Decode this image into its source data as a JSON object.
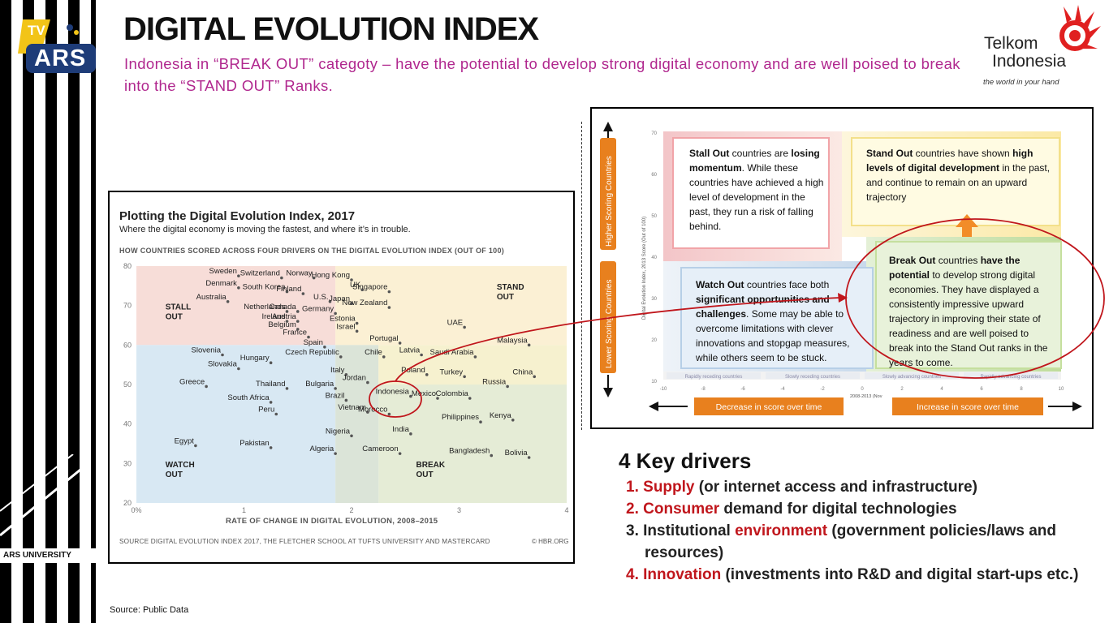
{
  "brand": {
    "tv_label": "TV",
    "ars_label": "ARS",
    "university": "ARS UNIVERSITY"
  },
  "header": {
    "title": "DIGITAL EVOLUTION INDEX",
    "subtitle": "Indonesia in “BREAK OUT” categoty – have the potential to develop strong digital economy and are well poised to  break into the “STAND OUT” Ranks."
  },
  "telkom": {
    "name_line1": "Telkom",
    "name_line2": "Indonesia",
    "tagline": "the world in your hand"
  },
  "chart_panel": {
    "title": "Plotting the Digital Evolution Index, 2017",
    "subtitle": "Where the digital economy is moving the fastest, and where it’s in trouble.",
    "header": "HOW COUNTRIES SCORED ACROSS FOUR DRIVERS ON THE DIGITAL EVOLUTION INDEX (OUT OF 100)",
    "source": "SOURCE  DIGITAL EVOLUTION INDEX 2017, THE FLETCHER SCHOOL AT TUFTS UNIVERSITY AND MASTERCARD",
    "hbr": "© HBR.ORG"
  },
  "chart_data": {
    "type": "scatter",
    "title": "Plotting the Digital Evolution Index, 2017",
    "xlabel": "RATE OF CHANGE IN DIGITAL EVOLUTION, 2008–2015",
    "ylabel": "",
    "xlim": [
      0,
      4
    ],
    "ylim": [
      20,
      80
    ],
    "x_ticks": [
      "0%",
      "1",
      "2",
      "3",
      "4"
    ],
    "y_ticks": [
      "20",
      "30",
      "40",
      "50",
      "60",
      "70",
      "80"
    ],
    "zones": [
      {
        "label": "STALL OUT",
        "color": "#f7ddd8"
      },
      {
        "label": "STAND OUT",
        "color": "#fbf0d4"
      },
      {
        "label": "WATCH OUT",
        "color": "#d8e8f3"
      },
      {
        "label": "BREAK OUT",
        "color": "#e5ecd6"
      }
    ],
    "points": [
      {
        "name": "Sweden",
        "x": 0.95,
        "y": 77.5
      },
      {
        "name": "Switzerland",
        "x": 1.35,
        "y": 77
      },
      {
        "name": "Norway",
        "x": 1.65,
        "y": 77
      },
      {
        "name": "Hong Kong",
        "x": 2.0,
        "y": 76.5
      },
      {
        "name": "Denmark",
        "x": 0.95,
        "y": 74.5
      },
      {
        "name": "UK",
        "x": 2.1,
        "y": 74
      },
      {
        "name": "South Korea",
        "x": 1.4,
        "y": 73.5
      },
      {
        "name": "Finland",
        "x": 1.55,
        "y": 73
      },
      {
        "name": "Singapore",
        "x": 2.35,
        "y": 73.5
      },
      {
        "name": "Australia",
        "x": 0.85,
        "y": 71
      },
      {
        "name": "U.S.",
        "x": 1.8,
        "y": 71
      },
      {
        "name": "Japan",
        "x": 2.0,
        "y": 70.5
      },
      {
        "name": "New Zealand",
        "x": 2.35,
        "y": 69.5
      },
      {
        "name": "Netherlands",
        "x": 1.4,
        "y": 68.5
      },
      {
        "name": "Canada",
        "x": 1.5,
        "y": 68.5
      },
      {
        "name": "Germany",
        "x": 1.85,
        "y": 68
      },
      {
        "name": "Ireland",
        "x": 1.4,
        "y": 66
      },
      {
        "name": "Austria",
        "x": 1.5,
        "y": 66
      },
      {
        "name": "Estonia",
        "x": 2.05,
        "y": 65.5
      },
      {
        "name": "Belgium",
        "x": 1.5,
        "y": 64
      },
      {
        "name": "Israel",
        "x": 2.05,
        "y": 63.5
      },
      {
        "name": "UAE",
        "x": 3.05,
        "y": 64.5
      },
      {
        "name": "France",
        "x": 1.6,
        "y": 62
      },
      {
        "name": "Portugal",
        "x": 2.45,
        "y": 60.5
      },
      {
        "name": "Malaysia",
        "x": 3.65,
        "y": 60
      },
      {
        "name": "Spain",
        "x": 1.75,
        "y": 59.5
      },
      {
        "name": "Slovenia",
        "x": 0.8,
        "y": 57.5
      },
      {
        "name": "Latvia",
        "x": 2.65,
        "y": 57.5
      },
      {
        "name": "Czech Republic",
        "x": 1.9,
        "y": 57
      },
      {
        "name": "Chile",
        "x": 2.3,
        "y": 57
      },
      {
        "name": "Saudi Arabia",
        "x": 3.15,
        "y": 57
      },
      {
        "name": "Hungary",
        "x": 1.25,
        "y": 55.5
      },
      {
        "name": "Slovakia",
        "x": 0.95,
        "y": 54
      },
      {
        "name": "Poland",
        "x": 2.7,
        "y": 52.5
      },
      {
        "name": "Italy",
        "x": 1.95,
        "y": 52.5
      },
      {
        "name": "Turkey",
        "x": 3.05,
        "y": 52
      },
      {
        "name": "China",
        "x": 3.7,
        "y": 52
      },
      {
        "name": "Jordan",
        "x": 2.15,
        "y": 50.5
      },
      {
        "name": "Russia",
        "x": 3.45,
        "y": 49.5
      },
      {
        "name": "Greece",
        "x": 0.65,
        "y": 49.5
      },
      {
        "name": "Thailand",
        "x": 1.4,
        "y": 49
      },
      {
        "name": "Bulgaria",
        "x": 1.85,
        "y": 49
      },
      {
        "name": "Indonesia",
        "x": 2.55,
        "y": 47
      },
      {
        "name": "Mexico",
        "x": 2.8,
        "y": 46.5
      },
      {
        "name": "Colombia",
        "x": 3.1,
        "y": 46.5
      },
      {
        "name": "Brazil",
        "x": 1.95,
        "y": 46
      },
      {
        "name": "South Africa",
        "x": 1.25,
        "y": 45.5
      },
      {
        "name": "Vietnam",
        "x": 2.15,
        "y": 43
      },
      {
        "name": "Morocco",
        "x": 2.35,
        "y": 42.5
      },
      {
        "name": "Peru",
        "x": 1.3,
        "y": 42.5
      },
      {
        "name": "Philippines",
        "x": 3.2,
        "y": 40.5
      },
      {
        "name": "Kenya",
        "x": 3.5,
        "y": 41
      },
      {
        "name": "India",
        "x": 2.55,
        "y": 37.5
      },
      {
        "name": "Nigeria",
        "x": 2.0,
        "y": 37
      },
      {
        "name": "Egypt",
        "x": 0.55,
        "y": 34.5
      },
      {
        "name": "Pakistan",
        "x": 1.25,
        "y": 34
      },
      {
        "name": "Cameroon",
        "x": 2.45,
        "y": 32.5
      },
      {
        "name": "Bangladesh",
        "x": 3.3,
        "y": 32
      },
      {
        "name": "Algeria",
        "x": 1.85,
        "y": 32.5
      },
      {
        "name": "Bolivia",
        "x": 3.65,
        "y": 31.5
      }
    ]
  },
  "diagram": {
    "higher_label": "Higher Scoring Countries",
    "lower_label": "Lower Scoring Countries",
    "axis_label": "Digital Evolution Index, 2013 Score (Out of 100)",
    "x_axis_label": "2008-2013 (Nov",
    "y_ticks": [
      "70",
      "60",
      "50",
      "40",
      "30",
      "20",
      "10"
    ],
    "x_ticks": [
      "-10",
      "-8",
      "-6",
      "-4",
      "-2",
      "0",
      "2",
      "4",
      "6",
      "8",
      "10"
    ],
    "strip": [
      "Rapidly receding countries",
      "Slowly receding countries",
      "Slowly advancing countries",
      "Rapidly advancing countries"
    ],
    "decrease": "Decrease in score over time",
    "increase": "Increase in score over time",
    "stall_out": {
      "head": "Stall Out",
      "t1": " countries are ",
      "b1": "losing momentum",
      "t2": ". While these countries have achieved a high level of development in the past, they run a risk of falling behind."
    },
    "stand_out": {
      "head": "Stand Out",
      "t1": " countries have shown ",
      "b1": "high levels of digital development",
      "t2": " in the past, and continue to remain on an upward trajectory"
    },
    "watch_out": {
      "head": "Watch Out",
      "t1": " countries face both ",
      "b1": "significant opportunities and challenges",
      "t2": ". Some may be able to overcome limitations with clever innovations and stopgap measures, while others seem to be stuck."
    },
    "break_out": {
      "head": "Break Out",
      "t1": " countries ",
      "b1": "have the potential",
      "t2": " to develop strong digital economies. They have displayed a consistently impressive upward trajectory in improving their state of readiness and are well poised to break into the Stand Out ranks in the years to come."
    }
  },
  "drivers": {
    "title": "4 Key drivers",
    "items": [
      {
        "num": "1.",
        "key": "Supply",
        "rest": " (or internet access and infrastructure)",
        "red_num": true
      },
      {
        "num": "2.",
        "key": "Consumer",
        "rest": " demand for digital technologies",
        "red_num": true
      },
      {
        "num": "3.",
        "pre": "Institutional ",
        "key": "environment",
        "rest": " (government policies/laws and",
        "cont": "resources)",
        "red_num": false
      },
      {
        "num": "4.",
        "key": "Innovation",
        "rest": " (investments into R&D  and digital start-ups etc.)",
        "red_num": true
      }
    ]
  },
  "footer": {
    "source": "Source: Public Data"
  },
  "colors": {
    "subtitle": "#b0278e",
    "accent_red": "#c0161c",
    "orange": "#e8801e"
  }
}
